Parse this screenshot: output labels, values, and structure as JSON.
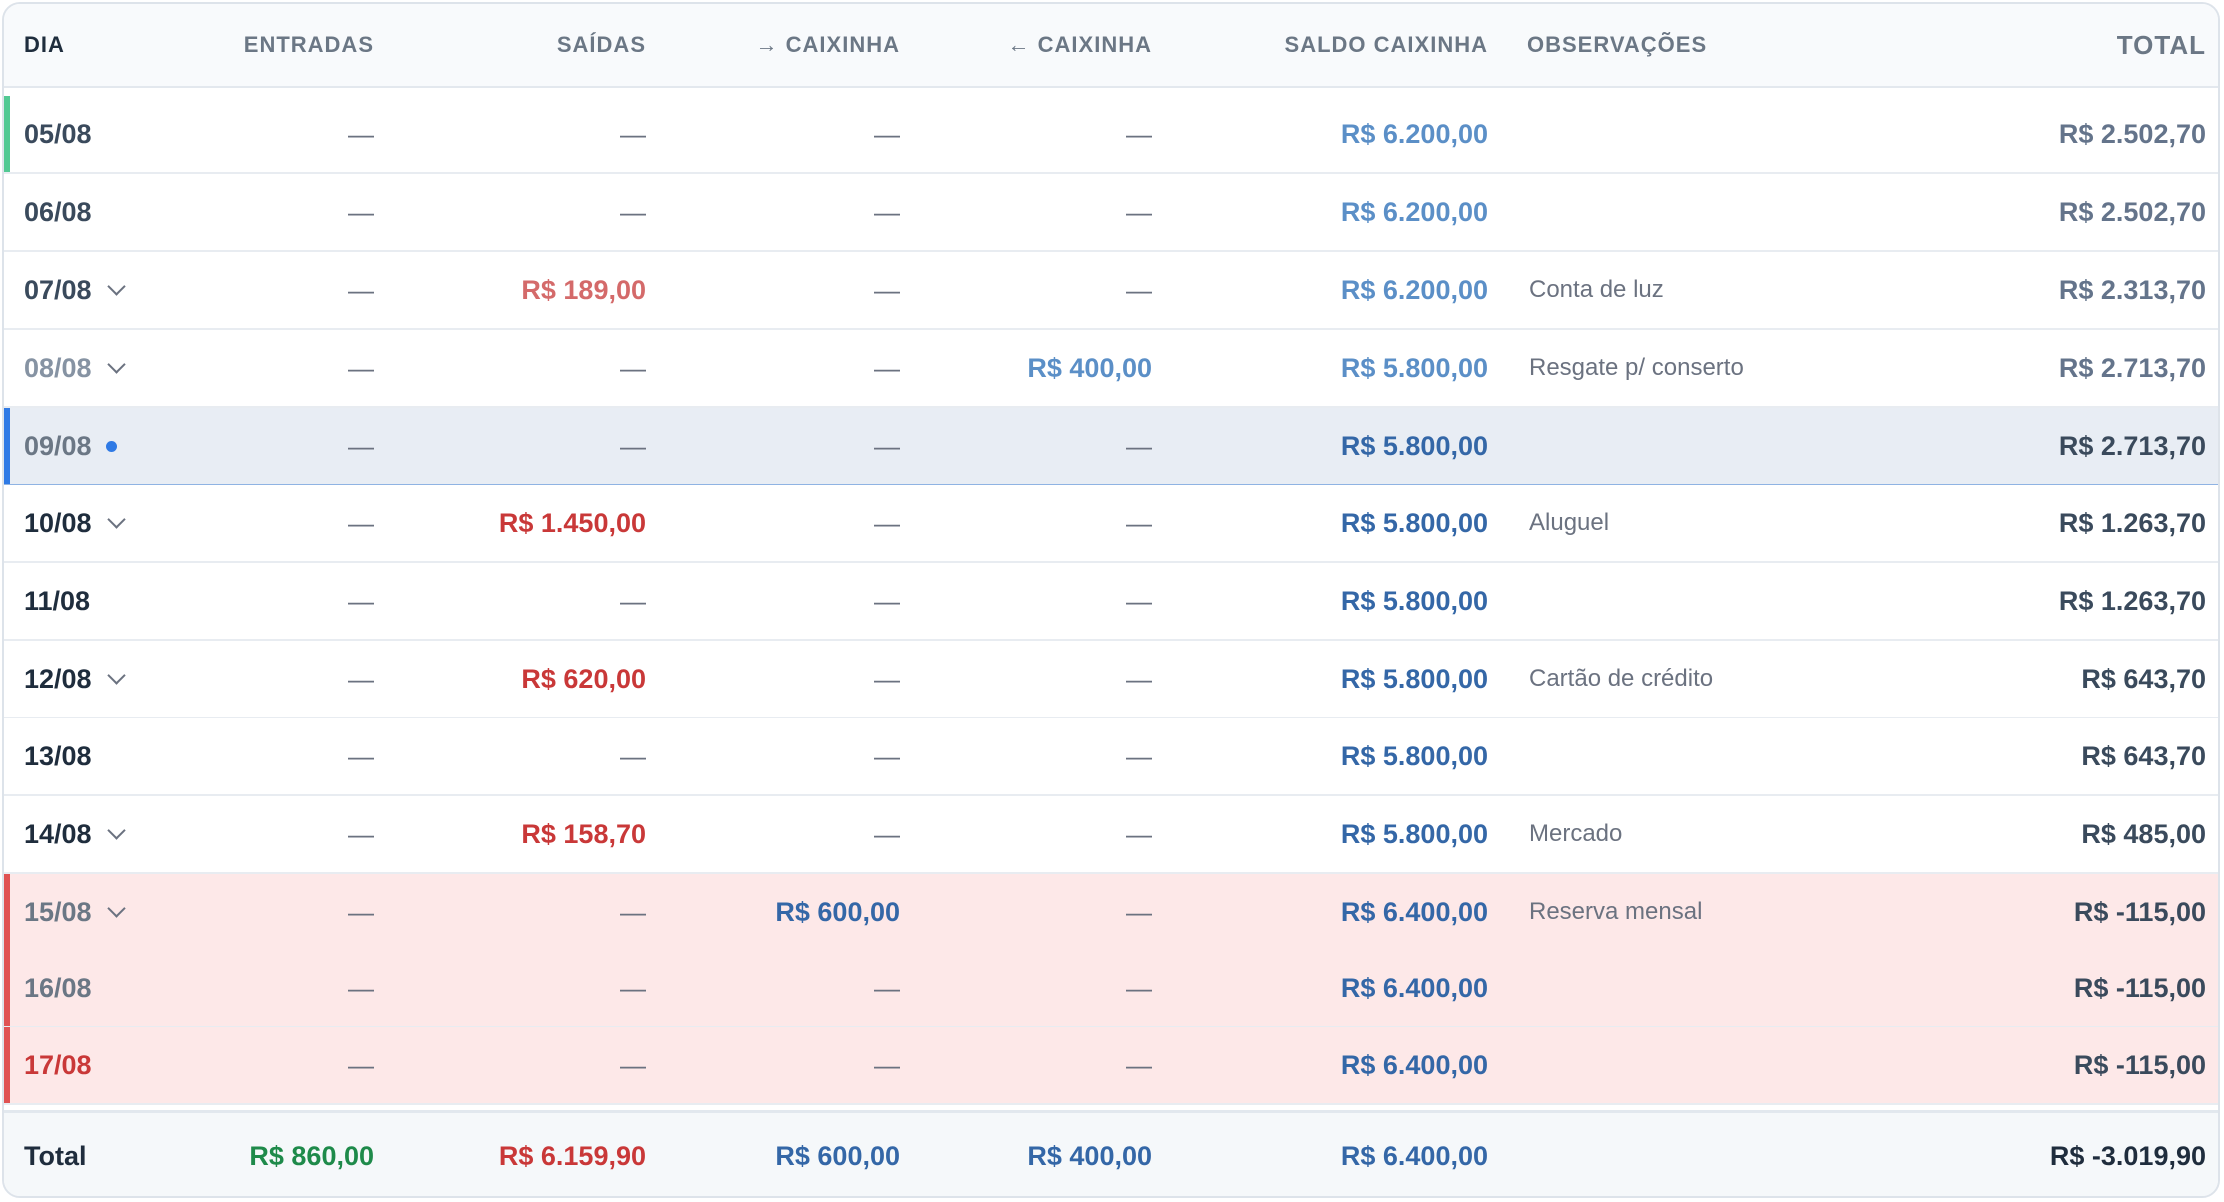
{
  "headers": {
    "dia": "DIA",
    "entradas": "ENTRADAS",
    "saidas": "SAÍDAS",
    "to_caixinha": "→ CAIXINHA",
    "from_caixinha": "← CAIXINHA",
    "saldo": "SALDO CAIXINHA",
    "obs": "OBSERVAÇÕES",
    "total": "TOTAL"
  },
  "colors": {
    "today_bar": "#2f7ae5",
    "past_bar": "#52c993",
    "negative_bar": "#e05252",
    "blue": "#3467a7",
    "red": "#c93838",
    "green": "#1e8a4a"
  },
  "rows": [
    {
      "dia": "05/08",
      "entradas": "—",
      "saidas": "—",
      "to_caixinha": "—",
      "from_caixinha": "—",
      "saldo": "R$ 6.200,00",
      "obs": "",
      "total": "R$ 2.502,70"
    },
    {
      "dia": "06/08",
      "entradas": "—",
      "saidas": "—",
      "to_caixinha": "—",
      "from_caixinha": "—",
      "saldo": "R$ 6.200,00",
      "obs": "",
      "total": "R$ 2.502,70"
    },
    {
      "dia": "07/08",
      "entradas": "—",
      "saidas": "R$ 189,00",
      "to_caixinha": "—",
      "from_caixinha": "—",
      "saldo": "R$ 6.200,00",
      "obs": "Conta de luz",
      "total": "R$ 2.313,70"
    },
    {
      "dia": "08/08",
      "entradas": "—",
      "saidas": "—",
      "to_caixinha": "—",
      "from_caixinha": "R$ 400,00",
      "saldo": "R$ 5.800,00",
      "obs": "Resgate p/ conserto",
      "total": "R$ 2.713,70"
    },
    {
      "dia": "09/08",
      "entradas": "—",
      "saidas": "—",
      "to_caixinha": "—",
      "from_caixinha": "—",
      "saldo": "R$ 5.800,00",
      "obs": "",
      "total": "R$ 2.713,70"
    },
    {
      "dia": "10/08",
      "entradas": "—",
      "saidas": "R$ 1.450,00",
      "to_caixinha": "—",
      "from_caixinha": "—",
      "saldo": "R$ 5.800,00",
      "obs": "Aluguel",
      "total": "R$ 1.263,70"
    },
    {
      "dia": "11/08",
      "entradas": "—",
      "saidas": "—",
      "to_caixinha": "—",
      "from_caixinha": "—",
      "saldo": "R$ 5.800,00",
      "obs": "",
      "total": "R$ 1.263,70"
    },
    {
      "dia": "12/08",
      "entradas": "—",
      "saidas": "R$ 620,00",
      "to_caixinha": "—",
      "from_caixinha": "—",
      "saldo": "R$ 5.800,00",
      "obs": "Cartão de crédito",
      "total": "R$ 643,70"
    },
    {
      "dia": "13/08",
      "entradas": "—",
      "saidas": "—",
      "to_caixinha": "—",
      "from_caixinha": "—",
      "saldo": "R$ 5.800,00",
      "obs": "",
      "total": "R$ 643,70"
    },
    {
      "dia": "14/08",
      "entradas": "—",
      "saidas": "R$ 158,70",
      "to_caixinha": "—",
      "from_caixinha": "—",
      "saldo": "R$ 5.800,00",
      "obs": "Mercado",
      "total": "R$ 485,00"
    },
    {
      "dia": "15/08",
      "entradas": "—",
      "saidas": "—",
      "to_caixinha": "R$ 600,00",
      "from_caixinha": "—",
      "saldo": "R$ 6.400,00",
      "obs": "Reserva mensal",
      "total": "R$ -115,00"
    },
    {
      "dia": "16/08",
      "entradas": "—",
      "saidas": "—",
      "to_caixinha": "—",
      "from_caixinha": "—",
      "saldo": "R$ 6.400,00",
      "obs": "",
      "total": "R$ -115,00"
    },
    {
      "dia": "17/08",
      "entradas": "—",
      "saidas": "—",
      "to_caixinha": "—",
      "from_caixinha": "—",
      "saldo": "R$ 6.400,00",
      "obs": "",
      "total": "R$ -115,00"
    }
  ],
  "totals": {
    "label": "Total",
    "entradas": "R$ 860,00",
    "saidas": "R$ 6.159,90",
    "to_caixinha": "R$ 600,00",
    "from_caixinha": "R$ 400,00",
    "saldo": "R$ 6.400,00",
    "total": "R$ -3.019,90"
  }
}
